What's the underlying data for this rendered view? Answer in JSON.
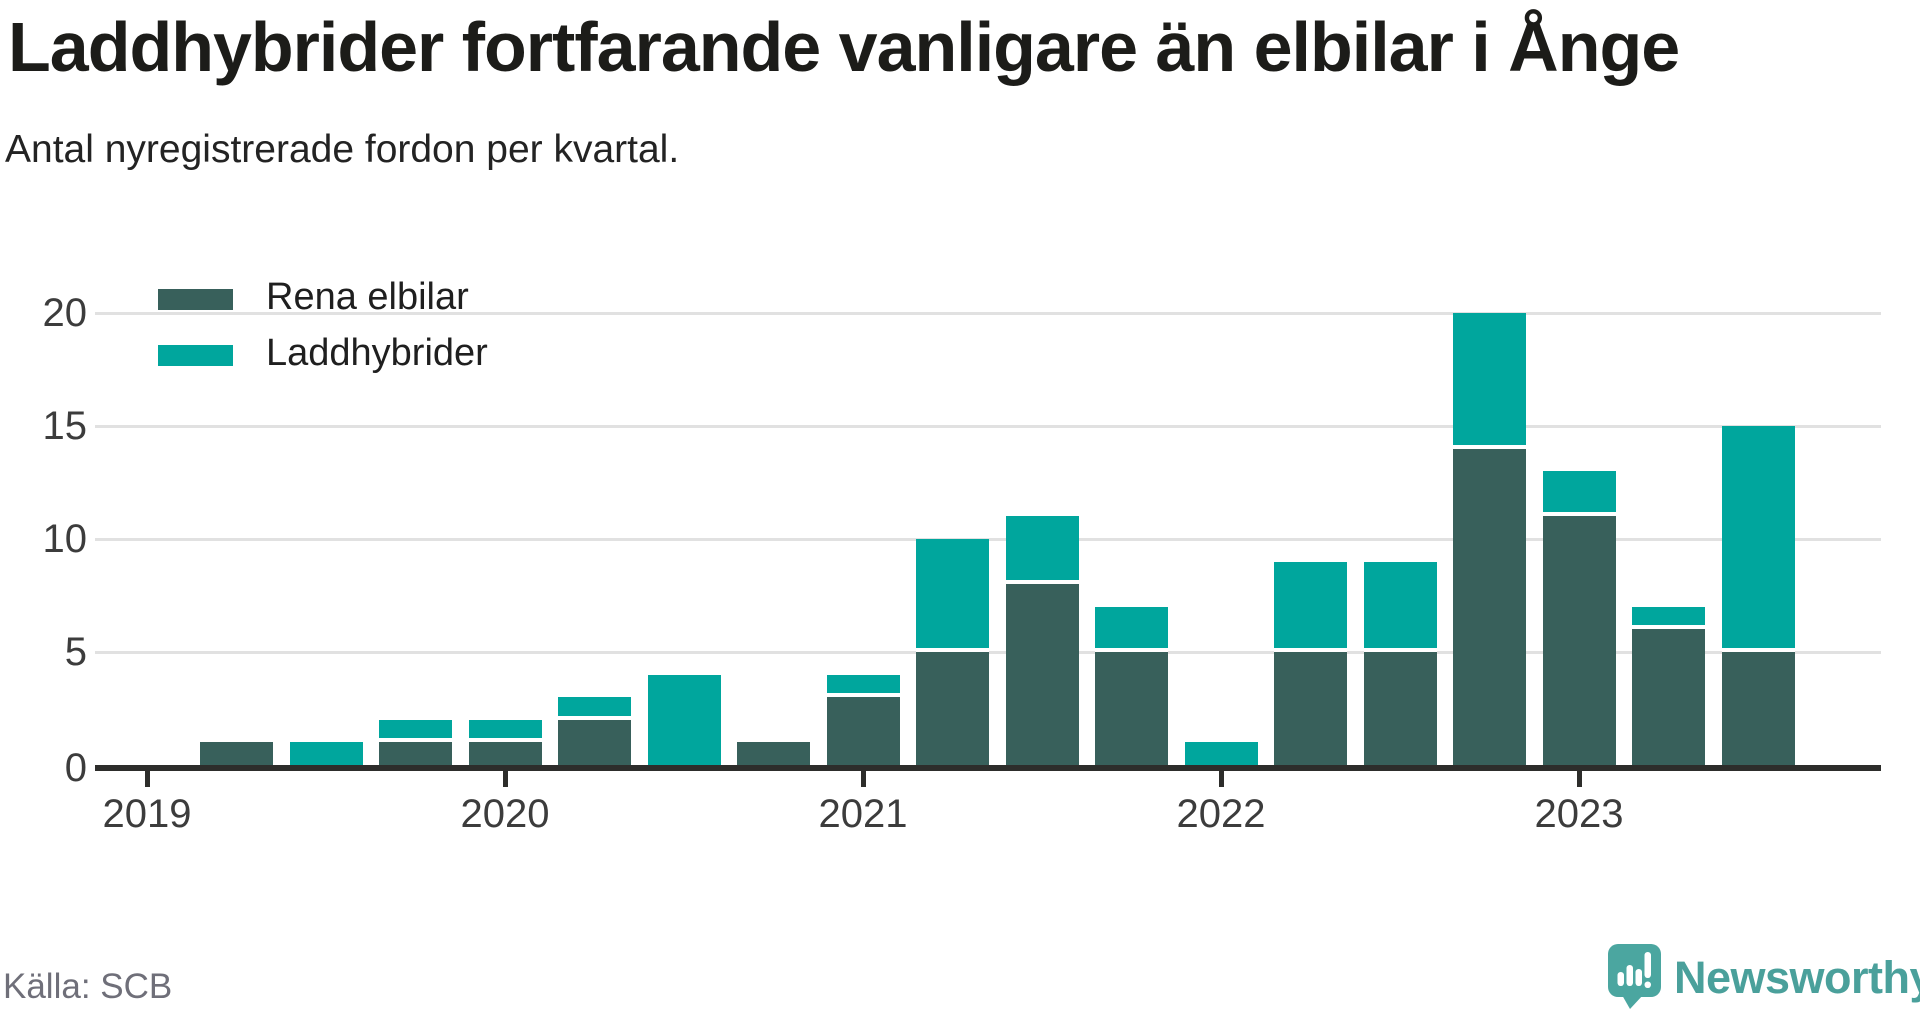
{
  "header": {
    "title": "Laddhybrider fortfarande vanligare än elbilar i Ånge",
    "subtitle": "Antal nyregistrerade fordon per kvartal."
  },
  "footer": {
    "source": "Källa: SCB",
    "brand": "Newsworthy"
  },
  "colors": {
    "title_text": "#1c1c19",
    "axis_text": "#3c3c3c",
    "axis_line": "#2d2d2b",
    "gridline": "#e1e1e1",
    "series_dark": "#38605b",
    "series_teal": "#00a69d",
    "source_text": "#6f6f79",
    "brand_teal": "#4aa09b",
    "background": "#ffffff"
  },
  "chart_data": {
    "type": "bar",
    "stacked": true,
    "title": "Laddhybrider fortfarande vanligare än elbilar i Ånge",
    "subtitle": "Antal nyregistrerade fordon per kvartal.",
    "legend_position": "top-left",
    "grid": true,
    "ylim": [
      0,
      20
    ],
    "y_ticks": [
      0,
      5,
      10,
      15,
      20
    ],
    "categories": [
      "2019 Q1",
      "2019 Q2",
      "2019 Q3",
      "2019 Q4",
      "2020 Q1",
      "2020 Q2",
      "2020 Q3",
      "2020 Q4",
      "2021 Q1",
      "2021 Q2",
      "2021 Q3",
      "2021 Q4",
      "2022 Q1",
      "2022 Q2",
      "2022 Q3",
      "2022 Q4",
      "2023 Q1",
      "2023 Q2",
      "2023 Q3"
    ],
    "series": [
      {
        "name": "Rena elbilar",
        "color": "#38605b",
        "values": [
          0,
          1,
          0,
          1,
          1,
          2,
          0,
          1,
          3,
          5,
          8,
          5,
          0,
          5,
          5,
          14,
          11,
          6,
          5
        ]
      },
      {
        "name": "Laddhybrider",
        "color": "#00a69d",
        "values": [
          0,
          0,
          1,
          1,
          1,
          1,
          4,
          0,
          1,
          5,
          3,
          2,
          1,
          4,
          4,
          6,
          2,
          1,
          10
        ]
      }
    ],
    "x_ticks": [
      {
        "index": 0,
        "label": "2019"
      },
      {
        "index": 4,
        "label": "2020"
      },
      {
        "index": 8,
        "label": "2021"
      },
      {
        "index": 12,
        "label": "2022"
      },
      {
        "index": 16,
        "label": "2023"
      }
    ],
    "x_domain_bands": 20
  }
}
